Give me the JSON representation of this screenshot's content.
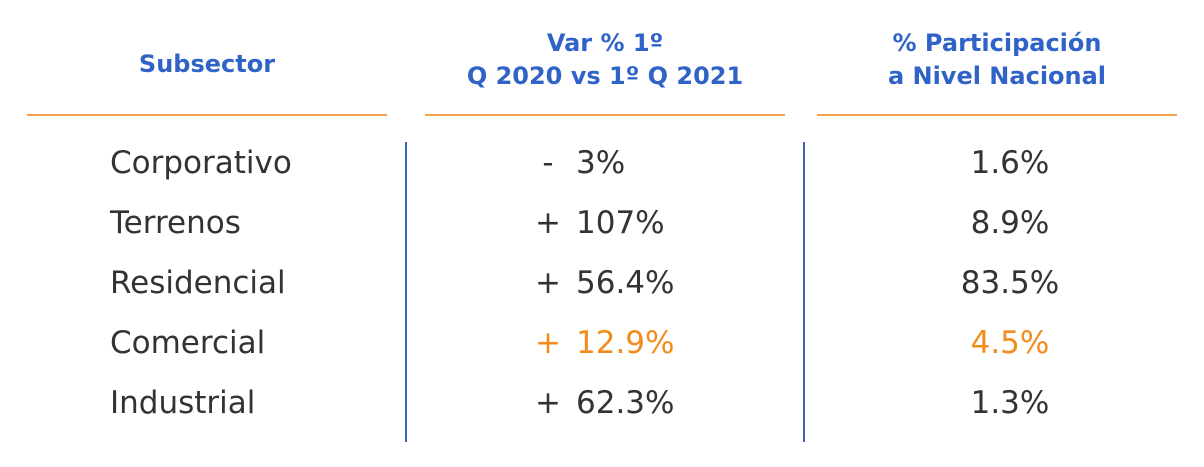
{
  "table": {
    "header": [
      [
        "Subsector"
      ],
      [
        "Var % 1º",
        "Q 2020 vs 1º Q 2021"
      ],
      [
        "% Participación",
        "a Nivel Nacional"
      ]
    ],
    "rows": [
      [
        "Corporativo",
        "-",
        "3%",
        "1.6%"
      ],
      [
        "Terrenos",
        "+",
        "107%",
        "8.9%"
      ],
      [
        "Residencial",
        "+",
        "56.4%",
        "83.5%"
      ],
      [
        "Comercial",
        "+",
        "12.9%",
        "4.5%"
      ],
      [
        "Industrial",
        "+",
        "62.3%",
        "1.3%"
      ]
    ]
  }
}
